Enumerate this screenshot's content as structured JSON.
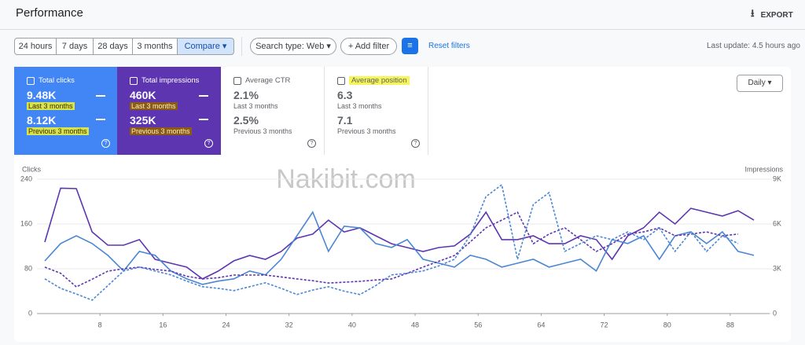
{
  "header": {
    "title": "Performance",
    "export": "EXPORT"
  },
  "toolbar": {
    "date_ranges": [
      "24 hours",
      "7 days",
      "28 days",
      "3 months"
    ],
    "compare": "Compare",
    "search_type": "Search type: Web",
    "add_filter": "Add filter",
    "reset": "Reset filters",
    "last_update": "Last update: 4.5 hours ago"
  },
  "metrics": [
    {
      "name": "Total clicks",
      "current": "9.48K",
      "current_label": "Last 3 months",
      "previous": "8.12K",
      "previous_label": "Previous 3 months"
    },
    {
      "name": "Total impressions",
      "current": "460K",
      "current_label": "Last 3 months",
      "previous": "325K",
      "previous_label": "Previous 3 months"
    },
    {
      "name": "Average CTR",
      "current": "2.1%",
      "current_label": "Last 3 months",
      "previous": "2.5%",
      "previous_label": "Previous 3 months"
    },
    {
      "name": "Average position",
      "current": "6.3",
      "current_label": "Last 3 months",
      "previous": "7.1",
      "previous_label": "Previous 3 months"
    }
  ],
  "granularity": "Daily",
  "watermark": "Nakibit.com",
  "chart_data": {
    "type": "line",
    "ylabel": "Clicks",
    "y2label": "Impressions",
    "x": [
      1,
      3,
      5,
      7,
      9,
      11,
      13,
      15,
      17,
      19,
      21,
      23,
      25,
      27,
      29,
      31,
      33,
      35,
      37,
      39,
      41,
      43,
      45,
      47,
      49,
      51,
      53,
      55,
      57,
      59,
      61,
      63,
      65,
      67,
      69,
      71,
      73,
      75,
      77,
      79,
      81,
      83,
      85,
      87,
      89,
      91
    ],
    "xlim": [
      0,
      93
    ],
    "xticks": [
      8,
      16,
      24,
      32,
      40,
      48,
      56,
      64,
      72,
      80,
      88
    ],
    "ylim": [
      0,
      240
    ],
    "yticks": [
      0,
      80,
      160,
      240
    ],
    "y2lim": [
      0,
      9000
    ],
    "y2ticks": [
      0,
      {
        "value": 3000,
        "label": "3K"
      },
      {
        "value": 6000,
        "label": "6K"
      },
      {
        "value": 9000,
        "label": "9K"
      }
    ],
    "grid": true,
    "series": [
      {
        "color": "#5e35b1",
        "axis": "y2",
        "dashed": false,
        "values": [
          4790,
          8400,
          8370,
          5470,
          4580,
          4580,
          4950,
          3630,
          3370,
          3110,
          2320,
          2840,
          3530,
          3890,
          3630,
          4160,
          5050,
          5320,
          6260,
          5470,
          5740,
          5210,
          4680,
          4420,
          4160,
          4420,
          4530,
          5320,
          6790,
          4950,
          4950,
          5210,
          4680,
          4680,
          5210,
          4950,
          3630,
          5210,
          5740,
          6790,
          6000,
          7050,
          6790,
          6530,
          6890,
          6260
        ]
      },
      {
        "color": "#4a86d4",
        "dashed": false,
        "values": [
          94,
          125,
          139,
          125,
          104,
          76,
          111,
          104,
          76,
          62,
          52,
          58,
          62,
          76,
          69,
          97,
          139,
          181,
          111,
          156,
          153,
          125,
          118,
          132,
          97,
          90,
          83,
          104,
          97,
          83,
          90,
          97,
          83,
          90,
          97,
          76,
          132,
          125,
          139,
          97,
          139,
          146,
          125,
          146,
          111,
          104
        ]
      },
      {
        "color": "#5e35b1",
        "axis": "y2",
        "dashed": true,
        "values": [
          3110,
          2700,
          1790,
          2300,
          2840,
          3000,
          3110,
          2950,
          2840,
          2500,
          2320,
          2400,
          2580,
          2580,
          2580,
          2450,
          2320,
          2200,
          2050,
          2100,
          2160,
          2250,
          2320,
          2700,
          3110,
          3500,
          3890,
          4800,
          5740,
          6260,
          6790,
          4680,
          5320,
          5740,
          4950,
          4160,
          4680,
          5320,
          5470,
          5740,
          5210,
          5320,
          5470,
          5210,
          5320,
          null
        ]
      },
      {
        "color": "#4a86d4",
        "dashed": true,
        "values": [
          62,
          45,
          35,
          24,
          50,
          76,
          83,
          76,
          69,
          58,
          48,
          45,
          41,
          48,
          55,
          45,
          34,
          42,
          48,
          40,
          34,
          50,
          69,
          72,
          76,
          85,
          97,
          140,
          209,
          230,
          97,
          195,
          216,
          111,
          125,
          139,
          132,
          146,
          132,
          153,
          111,
          146,
          111,
          139,
          125,
          null
        ]
      }
    ]
  }
}
